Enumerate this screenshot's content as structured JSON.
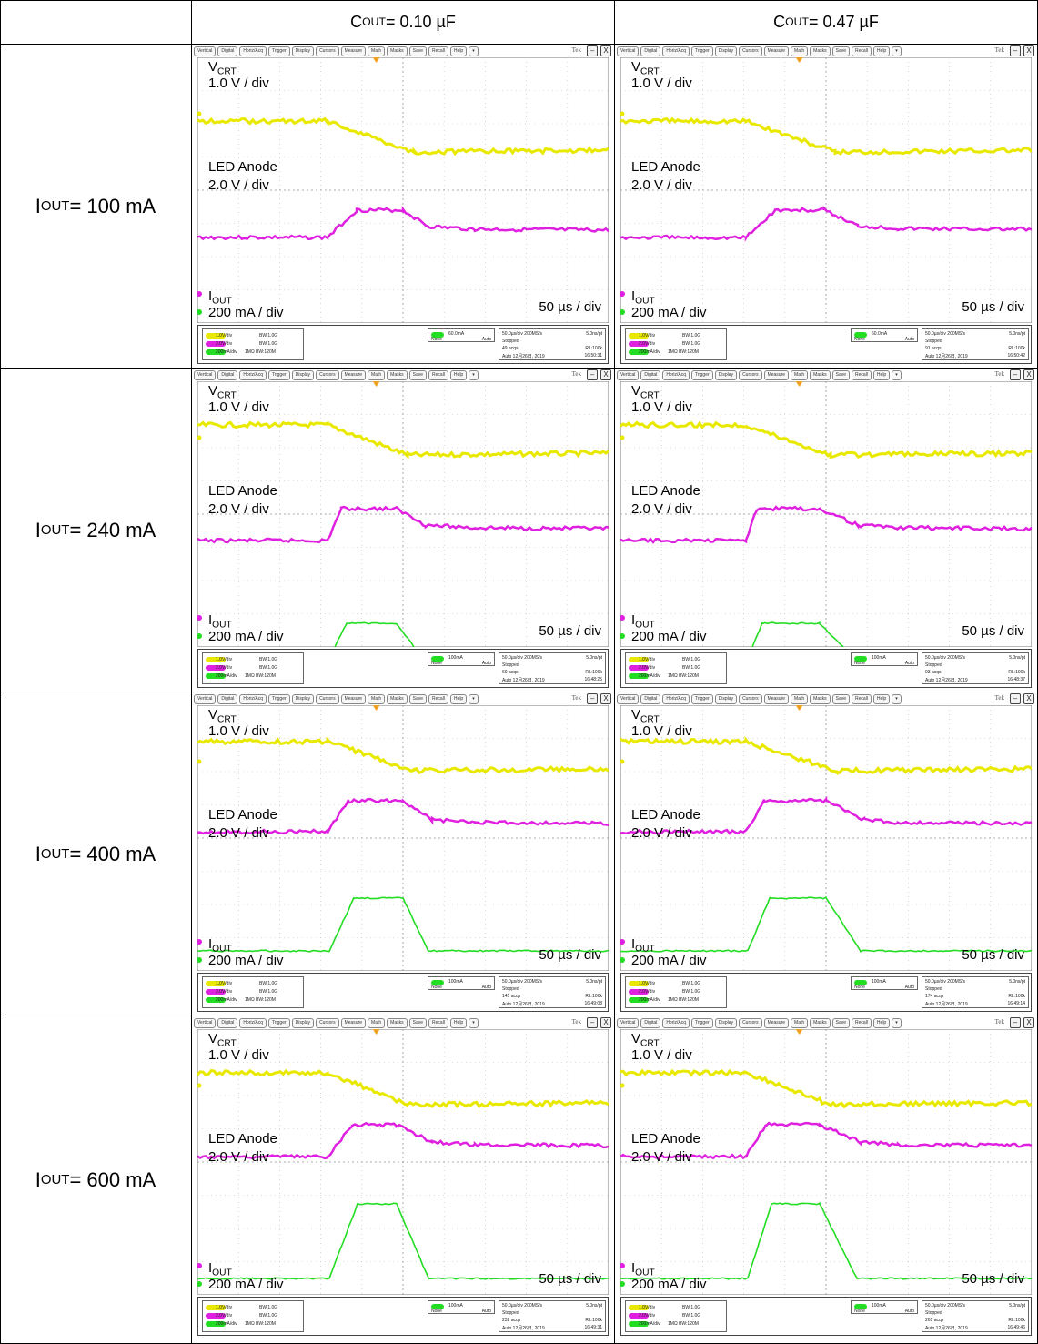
{
  "header": {
    "corner": "",
    "col1": {
      "main": "C",
      "sub": "OUT",
      "rest": " = 0.10 µF"
    },
    "col2": {
      "main": "C",
      "sub": "OUT",
      "rest": " = 0.47 µF"
    }
  },
  "rows": [
    {
      "label": {
        "main": "I",
        "sub": "OUT",
        "rest": " = 100 mA"
      },
      "panels": [
        {
          "id": "r1c1",
          "ch1": "1.0V/div",
          "ch2": "2.0V/div",
          "ch3": "200mA/div",
          "bw1": "BW:1.0G",
          "bw2": "BW:1.0G",
          "bw3": "1MΩ BW:120M",
          "trig": "60.0mA",
          "trigMode": "None",
          "auto": "Auto",
          "rate": "50.0µs/div 200MS/s",
          "pt": "5.0ns/pt",
          "state": "Stopped",
          "acqs": "49 acqs",
          "rl": "RL:100k",
          "date": "Auto  12月26日, 2019",
          "time": "16:50:31"
        },
        {
          "id": "r1c2",
          "ch1": "1.0V/div",
          "ch2": "2.0V/div",
          "ch3": "200mA/div",
          "bw1": "BW:1.0G",
          "bw2": "BW:1.0G",
          "bw3": "1MΩ BW:120M",
          "trig": "60.0mA",
          "trigMode": "None",
          "auto": "Auto",
          "rate": "50.0µs/div 200MS/s",
          "pt": "5.0ns/pt",
          "state": "Stopped",
          "acqs": "91 acqs",
          "rl": "RL:100k",
          "date": "Auto  12月26日, 2019",
          "time": "16:50:42"
        }
      ]
    },
    {
      "label": {
        "main": "I",
        "sub": "OUT",
        "rest": " = 240 mA"
      },
      "panels": [
        {
          "id": "r2c1",
          "ch1": "1.0V/div",
          "ch2": "2.0V/div",
          "ch3": "200mA/div",
          "bw1": "BW:1.0G",
          "bw2": "BW:1.0G",
          "bw3": "1MΩ BW:120M",
          "trig": "100mA",
          "trigMode": "None",
          "auto": "Auto",
          "rate": "50.0µs/div 200MS/s",
          "pt": "5.0ns/pt",
          "state": "Stopped",
          "acqs": "60 acqs",
          "rl": "RL:100k",
          "date": "Auto  12月26日, 2019",
          "time": "16:48:25"
        },
        {
          "id": "r2c2",
          "ch1": "1.0V/div",
          "ch2": "2.0V/div",
          "ch3": "200mA/div",
          "bw1": "BW:1.0G",
          "bw2": "BW:1.0G",
          "bw3": "1MΩ BW:120M",
          "trig": "100mA",
          "trigMode": "None",
          "auto": "Auto",
          "rate": "50.0µs/div 200MS/s",
          "pt": "5.0ns/pt",
          "state": "Stopped",
          "acqs": "93 acqs",
          "rl": "RL:100k",
          "date": "Auto  12月26日, 2019",
          "time": "16:48:37"
        }
      ]
    },
    {
      "label": {
        "main": "I",
        "sub": "OUT",
        "rest": " = 400 mA"
      },
      "panels": [
        {
          "id": "r3c1",
          "ch1": "1.0V/div",
          "ch2": "2.0V/div",
          "ch3": "200mA/div",
          "bw1": "BW:1.0G",
          "bw2": "BW:1.0G",
          "bw3": "1MΩ BW:120M",
          "trig": "100mA",
          "trigMode": "None",
          "auto": "Auto",
          "rate": "50.0µs/div 200MS/s",
          "pt": "5.0ns/pt",
          "state": "Stopped",
          "acqs": "145 acqs",
          "rl": "RL:100k",
          "date": "Auto  12月26日, 2019",
          "time": "16:49:08"
        },
        {
          "id": "r3c2",
          "ch1": "1.0V/div",
          "ch2": "2.0V/div",
          "ch3": "200mA/div",
          "bw1": "BW:1.0G",
          "bw2": "BW:1.0G",
          "bw3": "1MΩ BW:120M",
          "trig": "100mA",
          "trigMode": "None",
          "auto": "Auto",
          "rate": "50.0µs/div 200MS/s",
          "pt": "5.0ns/pt",
          "state": "Stopped",
          "acqs": "174 acqs",
          "rl": "RL:100k",
          "date": "Auto  12月26日, 2019",
          "time": "16:49:14"
        }
      ]
    },
    {
      "label": {
        "main": "I",
        "sub": "OUT",
        "rest": " = 600 mA"
      },
      "panels": [
        {
          "id": "r4c1",
          "ch1": "1.0V/div",
          "ch2": "2.0V/div",
          "ch3": "200mA/div",
          "bw1": "BW:1.0G",
          "bw2": "BW:1.0G",
          "bw3": "1MΩ BW:120M",
          "trig": "100mA",
          "trigMode": "None",
          "auto": "Auto",
          "rate": "50.0µs/div 200MS/s",
          "pt": "5.0ns/pt",
          "state": "Stopped",
          "acqs": "232 acqs",
          "rl": "RL:100k",
          "date": "Auto  12月26日, 2019",
          "time": "16:49:31"
        },
        {
          "id": "r4c2",
          "ch1": "1.0V/div",
          "ch2": "2.0V/div",
          "ch3": "200mA/div",
          "bw1": "BW:1.0G",
          "bw2": "BW:1.0G",
          "bw3": "1MΩ BW:120M",
          "trig": "100mA",
          "trigMode": "None",
          "auto": "Auto",
          "rate": "50.0µs/div 200MS/s",
          "pt": "5.0ns/pt",
          "state": "Stopped",
          "acqs": "261 acqs",
          "rl": "RL:100k",
          "date": "Auto  12月26日, 2019",
          "time": "16:49:46"
        }
      ]
    }
  ],
  "scope": {
    "menu": [
      "Vertical",
      "Digital",
      "Horiz/Acq",
      "Trigger",
      "Display",
      "Cursors",
      "Measure",
      "Math",
      "Masks",
      "Save",
      "Recall",
      "Help",
      "▾"
    ],
    "brand": "Tek",
    "minimize": "–",
    "close": "X",
    "labels": {
      "vcrt_main": "V",
      "vcrt_sub": "CRT",
      "vcrt_scale": "1.0 V / div",
      "anode": "LED Anode",
      "anode_scale": "2.0 V / div",
      "iout_main": "I",
      "iout_sub": "OUT",
      "iout_scale": "200 mA / div",
      "timebase": "50 µs / div"
    },
    "colors": {
      "ch1": "#e8e800",
      "ch2": "#e020e0",
      "ch3": "#22dd22",
      "grid": "#bdbdbd",
      "trigger": "#f0a020"
    }
  }
}
